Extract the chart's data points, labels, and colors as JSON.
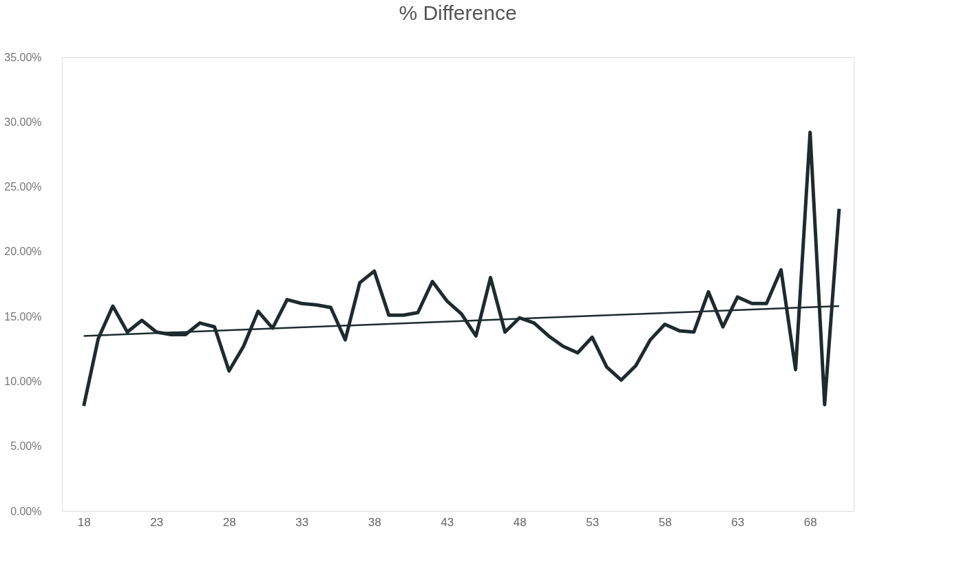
{
  "chart_data": {
    "type": "line",
    "title": "% Difference",
    "x": [
      18,
      19,
      20,
      21,
      22,
      23,
      24,
      25,
      26,
      27,
      28,
      29,
      30,
      31,
      32,
      33,
      34,
      35,
      36,
      37,
      38,
      39,
      40,
      41,
      42,
      43,
      44,
      45,
      46,
      47,
      48,
      49,
      50,
      51,
      52,
      53,
      54,
      55,
      56,
      57,
      58,
      59,
      60,
      61,
      62,
      63,
      64,
      65,
      66,
      67,
      68,
      69,
      70
    ],
    "series": [
      {
        "color": "#1e2b2e",
        "values": [
          8.1,
          13.3,
          15.8,
          13.8,
          14.7,
          13.8,
          13.6,
          13.6,
          14.5,
          14.2,
          10.8,
          12.7,
          15.4,
          14.1,
          16.3,
          16.0,
          15.9,
          15.7,
          13.2,
          17.6,
          18.5,
          15.1,
          15.1,
          15.3,
          17.7,
          16.2,
          15.2,
          13.5,
          18.0,
          13.8,
          14.9,
          14.5,
          13.5,
          12.7,
          12.2,
          13.4,
          11.1,
          10.1,
          11.2,
          13.2,
          14.4,
          13.9,
          13.8,
          16.9,
          14.2,
          16.5,
          16.0,
          16.0,
          18.6,
          10.9,
          29.2,
          8.2,
          23.3
        ]
      },
      {
        "type": "line",
        "color": "#1e2b2e",
        "x": [
          18,
          70
        ],
        "values": [
          13.5,
          15.8
        ]
      }
    ],
    "xlim": [
      16.5,
      71
    ],
    "xticks": [
      18,
      23,
      28,
      33,
      38,
      43,
      48,
      53,
      58,
      63,
      68
    ],
    "ylim": [
      0,
      35
    ],
    "yticks": [
      {
        "value": 0,
        "label": "0.00%"
      },
      {
        "value": 5,
        "label": "5.00%"
      },
      {
        "value": 10,
        "label": "10.00%"
      },
      {
        "value": 15,
        "label": "15.00%"
      },
      {
        "value": 20,
        "label": "20.00%"
      },
      {
        "value": 25,
        "label": "25.00%"
      },
      {
        "value": 30,
        "label": "30.00%"
      },
      {
        "value": 35,
        "label": "35.00%"
      }
    ],
    "grid": false
  }
}
